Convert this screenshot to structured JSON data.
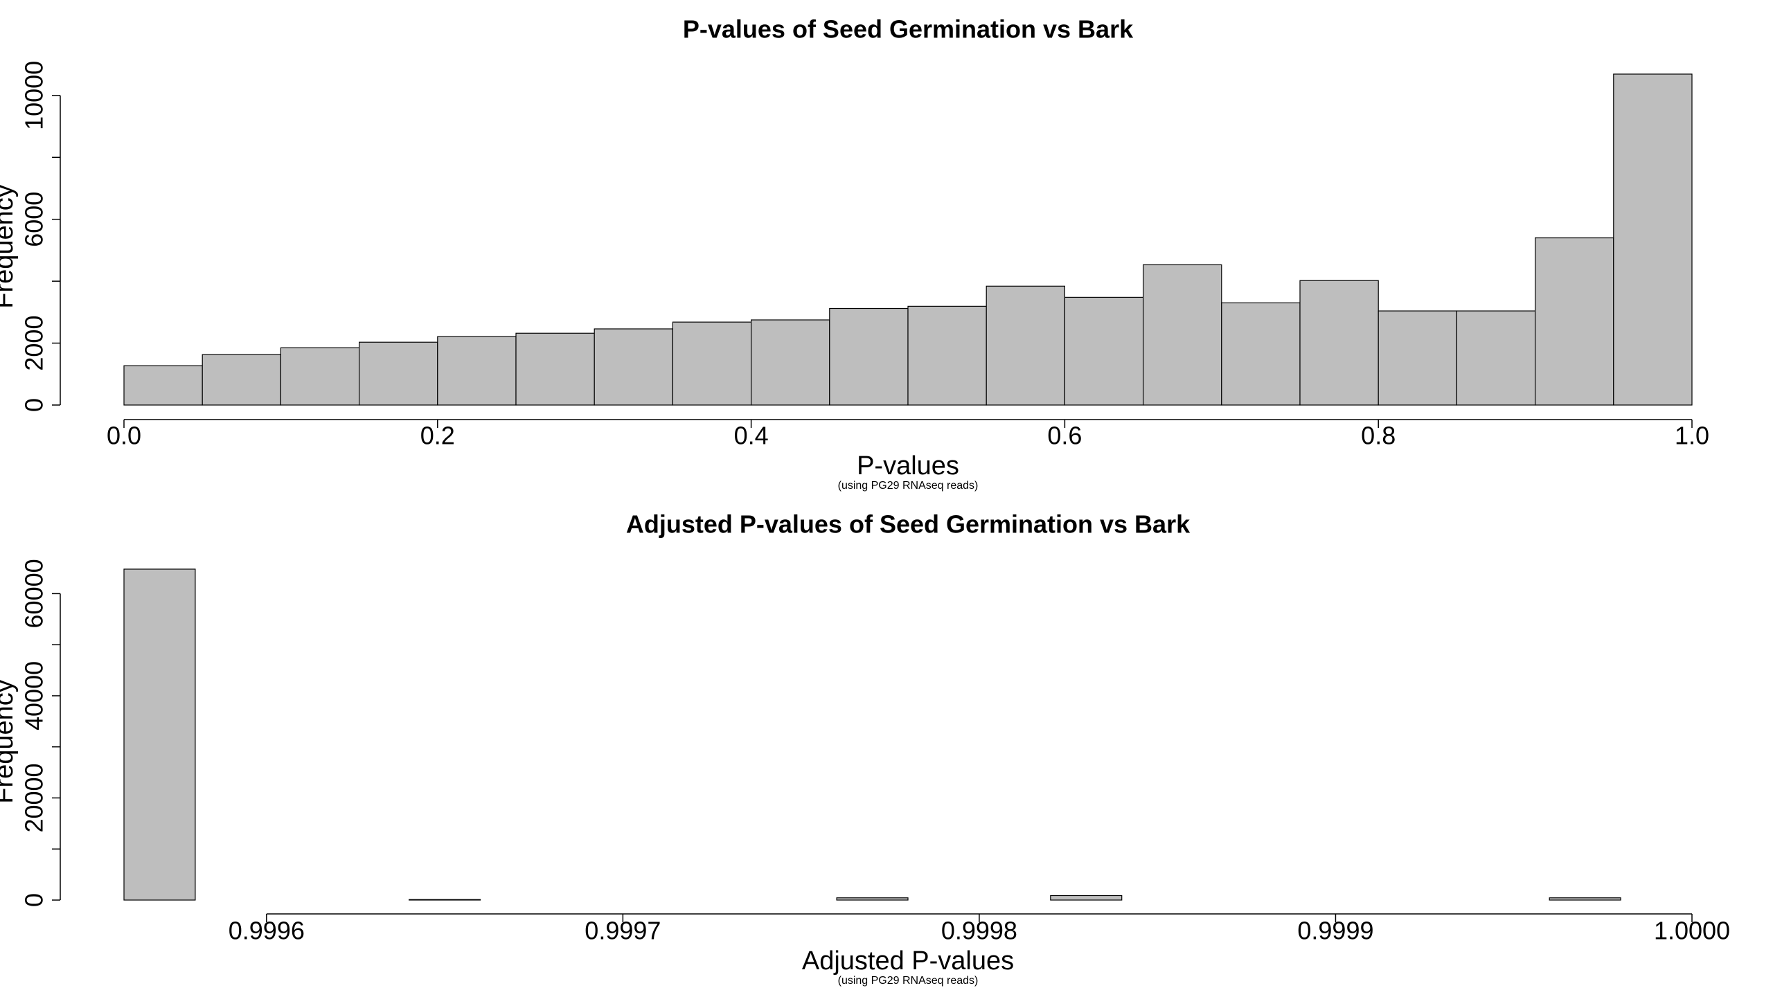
{
  "chart_data": [
    {
      "type": "histogram",
      "title": "P-values of Seed Germination vs Bark",
      "x_label": "P-values",
      "subtitle": "(using PG29 RNAseq reads)",
      "y_label": "Frequency",
      "bins": [
        0,
        0.05,
        0.1,
        0.15,
        0.2,
        0.25,
        0.3,
        0.35,
        0.4,
        0.45,
        0.5,
        0.55,
        0.6,
        0.65,
        0.7,
        0.75,
        0.8,
        0.85,
        0.9,
        0.95,
        1
      ],
      "values": [
        1270,
        1630,
        1850,
        2030,
        2210,
        2320,
        2460,
        2680,
        2750,
        3120,
        3190,
        3840,
        3480,
        4530,
        3300,
        4020,
        3040,
        3040,
        5400,
        10690
      ],
      "color": "#bebebe",
      "xlim": [
        0,
        1
      ],
      "xticks": [
        {
          "value": 0,
          "label": "0.0"
        },
        0.2,
        0.4,
        0.6,
        0.8,
        {
          "value": 1,
          "label": "1.0"
        }
      ],
      "ylim": [
        0,
        10690
      ],
      "yticks": [
        0,
        2000,
        {
          "value": 4000,
          "label": null
        },
        6000,
        {
          "value": 8000,
          "label": null
        },
        10000
      ]
    },
    {
      "type": "histogram",
      "title": "Adjusted P-values of Seed Germination vs Bark",
      "x_label": "Adjusted P-values",
      "subtitle": "(using PG29 RNAseq reads)",
      "y_label": "Frequency",
      "bins": [
        0.99956,
        0.99958,
        0.9996,
        0.99962,
        0.99964,
        0.99966,
        0.99968,
        0.9997,
        0.99972,
        0.99974,
        0.99976,
        0.99978,
        0.9998,
        0.99982,
        0.99984,
        0.99986,
        0.99988,
        0.9999,
        0.99992,
        0.99994,
        0.99996,
        0.99998,
        1.0
      ],
      "values": [
        64800,
        0,
        0,
        0,
        100,
        0,
        0,
        0,
        0,
        0,
        440,
        0,
        0,
        880,
        0,
        0,
        0,
        0,
        0,
        0,
        440,
        0
      ],
      "color": "#bebebe",
      "xlim": [
        0.99956,
        1.0
      ],
      "xticks": [
        0.9996,
        0.9997,
        0.9998,
        0.9999,
        {
          "value": 1,
          "label": "1.0000"
        }
      ],
      "ylim": [
        0,
        64800
      ],
      "yticks": [
        0,
        {
          "value": 10000,
          "label": null
        },
        20000,
        {
          "value": 30000,
          "label": null
        },
        40000,
        {
          "value": 50000,
          "label": null
        },
        60000
      ]
    }
  ]
}
